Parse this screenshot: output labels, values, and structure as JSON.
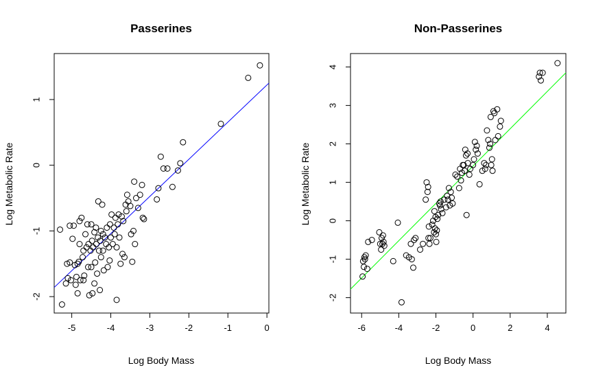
{
  "chart_data": [
    {
      "type": "scatter",
      "title": "Passerines",
      "xlabel": "Log Body Mass",
      "ylabel": "Log Metabolic Rate",
      "xlim": [
        -5.45,
        0.05
      ],
      "ylim": [
        -2.25,
        1.7
      ],
      "xticks": [
        -5,
        -4,
        -3,
        -2,
        -1,
        0
      ],
      "yticks": [
        -2,
        -1,
        0,
        1
      ],
      "grid": false,
      "fit_line": {
        "color": "#0000ff",
        "x": [
          -5.45,
          0.05
        ],
        "y": [
          -1.86,
          1.25
        ]
      },
      "points": [
        [
          -5.25,
          -2.12
        ],
        [
          -5.3,
          -0.98
        ],
        [
          -5.15,
          -1.8
        ],
        [
          -5.1,
          -1.72
        ],
        [
          -5.12,
          -1.5
        ],
        [
          -5.05,
          -1.48
        ],
        [
          -5.05,
          -0.92
        ],
        [
          -5.02,
          -1.75
        ],
        [
          -4.98,
          -1.12
        ],
        [
          -4.95,
          -0.92
        ],
        [
          -4.92,
          -1.52
        ],
        [
          -4.9,
          -1.82
        ],
        [
          -4.88,
          -1.7
        ],
        [
          -4.85,
          -1.5
        ],
        [
          -4.85,
          -1.95
        ],
        [
          -4.82,
          -1.47
        ],
        [
          -4.8,
          -1.2
        ],
        [
          -4.8,
          -0.85
        ],
        [
          -4.78,
          -1.75
        ],
        [
          -4.75,
          -0.8
        ],
        [
          -4.72,
          -1.4
        ],
        [
          -4.7,
          -1.75
        ],
        [
          -4.7,
          -1.3
        ],
        [
          -4.68,
          -1.68
        ],
        [
          -4.65,
          -1.05
        ],
        [
          -4.62,
          -1.25
        ],
        [
          -4.6,
          -0.9
        ],
        [
          -4.58,
          -1.55
        ],
        [
          -4.57,
          -1.2
        ],
        [
          -4.55,
          -1.98
        ],
        [
          -4.52,
          -1.3
        ],
        [
          -4.5,
          -0.9
        ],
        [
          -4.5,
          -1.55
        ],
        [
          -4.48,
          -1.15
        ],
        [
          -4.47,
          -1.95
        ],
        [
          -4.45,
          -1.25
        ],
        [
          -4.42,
          -1.02
        ],
        [
          -4.42,
          -1.8
        ],
        [
          -4.4,
          -1.48
        ],
        [
          -4.38,
          -0.95
        ],
        [
          -4.37,
          -1.2
        ],
        [
          -4.35,
          -1.65
        ],
        [
          -4.33,
          -1.1
        ],
        [
          -4.32,
          -0.55
        ],
        [
          -4.3,
          -1.3
        ],
        [
          -4.28,
          -1.9
        ],
        [
          -4.27,
          -1.15
        ],
        [
          -4.25,
          -1.0
        ],
        [
          -4.25,
          -1.4
        ],
        [
          -4.22,
          -0.6
        ],
        [
          -4.2,
          -1.05
        ],
        [
          -4.2,
          -1.3
        ],
        [
          -4.18,
          -1.6
        ],
        [
          -4.15,
          -1.1
        ],
        [
          -4.12,
          -1.2
        ],
        [
          -4.1,
          -0.95
        ],
        [
          -4.08,
          -1.55
        ],
        [
          -4.05,
          -1.25
        ],
        [
          -4.03,
          -1.45
        ],
        [
          -4.02,
          -0.9
        ],
        [
          -4.0,
          -1.1
        ],
        [
          -3.98,
          -0.75
        ],
        [
          -3.95,
          -1.2
        ],
        [
          -3.92,
          -0.95
        ],
        [
          -3.9,
          -1.05
        ],
        [
          -3.88,
          -0.8
        ],
        [
          -3.85,
          -2.05
        ],
        [
          -3.85,
          -1.25
        ],
        [
          -3.82,
          -0.9
        ],
        [
          -3.8,
          -0.75
        ],
        [
          -3.78,
          -1.1
        ],
        [
          -3.75,
          -1.5
        ],
        [
          -3.72,
          -0.78
        ],
        [
          -3.7,
          -1.35
        ],
        [
          -3.68,
          -0.85
        ],
        [
          -3.65,
          -1.4
        ],
        [
          -3.62,
          -0.6
        ],
        [
          -3.6,
          -0.7
        ],
        [
          -3.58,
          -0.45
        ],
        [
          -3.55,
          -0.55
        ],
        [
          -3.5,
          -0.62
        ],
        [
          -3.48,
          -1.05
        ],
        [
          -3.45,
          -1.47
        ],
        [
          -3.42,
          -1.0
        ],
        [
          -3.4,
          -0.25
        ],
        [
          -3.38,
          -1.2
        ],
        [
          -3.35,
          -0.5
        ],
        [
          -3.3,
          -0.65
        ],
        [
          -3.25,
          -0.45
        ],
        [
          -3.2,
          -0.3
        ],
        [
          -3.18,
          -0.8
        ],
        [
          -3.15,
          -0.82
        ],
        [
          -2.82,
          -0.52
        ],
        [
          -2.78,
          -0.35
        ],
        [
          -2.72,
          0.13
        ],
        [
          -2.65,
          -0.05
        ],
        [
          -2.55,
          -0.05
        ],
        [
          -2.42,
          -0.33
        ],
        [
          -2.28,
          -0.08
        ],
        [
          -2.22,
          0.03
        ],
        [
          -2.15,
          0.35
        ],
        [
          -1.18,
          0.63
        ],
        [
          -0.48,
          1.33
        ],
        [
          -0.18,
          1.52
        ]
      ]
    },
    {
      "type": "scatter",
      "title": "Non-Passerines",
      "xlabel": "Log Body Mass",
      "ylabel": "Log Metabolic Rate",
      "xlim": [
        -6.6,
        5.0
      ],
      "ylim": [
        -2.4,
        4.35
      ],
      "xticks": [
        -6,
        -4,
        -2,
        0,
        2,
        4
      ],
      "yticks": [
        -2,
        -1,
        0,
        1,
        2,
        3,
        4
      ],
      "grid": false,
      "fit_line": {
        "color": "#00ff00",
        "x": [
          -6.6,
          5.0
        ],
        "y": [
          -1.78,
          3.85
        ]
      },
      "points": [
        [
          -5.95,
          -1.45
        ],
        [
          -5.92,
          -1.05
        ],
        [
          -5.88,
          -1.2
        ],
        [
          -5.85,
          -0.95
        ],
        [
          -5.82,
          -1.0
        ],
        [
          -5.78,
          -0.9
        ],
        [
          -5.7,
          -1.25
        ],
        [
          -5.65,
          -0.55
        ],
        [
          -5.45,
          -0.5
        ],
        [
          -5.05,
          -0.3
        ],
        [
          -5.0,
          -0.6
        ],
        [
          -4.95,
          -0.75
        ],
        [
          -4.92,
          -0.45
        ],
        [
          -4.88,
          -0.6
        ],
        [
          -4.85,
          -0.38
        ],
        [
          -4.82,
          -0.55
        ],
        [
          -4.78,
          -0.65
        ],
        [
          -4.3,
          -1.05
        ],
        [
          -4.05,
          -0.05
        ],
        [
          -3.85,
          -2.12
        ],
        [
          -3.6,
          -0.9
        ],
        [
          -3.45,
          -0.95
        ],
        [
          -3.35,
          -0.6
        ],
        [
          -3.3,
          -1.0
        ],
        [
          -3.22,
          -1.22
        ],
        [
          -3.18,
          -0.5
        ],
        [
          -3.1,
          -0.45
        ],
        [
          -2.85,
          -0.75
        ],
        [
          -2.7,
          -0.6
        ],
        [
          -2.55,
          0.55
        ],
        [
          -2.5,
          1.0
        ],
        [
          -2.45,
          0.75
        ],
        [
          -2.42,
          0.88
        ],
        [
          -2.4,
          -0.45
        ],
        [
          -2.38,
          -0.15
        ],
        [
          -2.35,
          -0.6
        ],
        [
          -2.3,
          -0.45
        ],
        [
          -2.2,
          -0.1
        ],
        [
          -2.15,
          0.0
        ],
        [
          -2.1,
          -0.3
        ],
        [
          -2.08,
          0.25
        ],
        [
          -2.05,
          -0.2
        ],
        [
          -2.02,
          0.1
        ],
        [
          -2.0,
          -0.35
        ],
        [
          -1.98,
          -0.55
        ],
        [
          -1.95,
          -0.25
        ],
        [
          -1.92,
          0.05
        ],
        [
          -1.88,
          0.15
        ],
        [
          -1.82,
          0.45
        ],
        [
          -1.78,
          0.4
        ],
        [
          -1.75,
          0.5
        ],
        [
          -1.72,
          0.3
        ],
        [
          -1.65,
          0.2
        ],
        [
          -1.55,
          0.55
        ],
        [
          -1.45,
          0.35
        ],
        [
          -1.4,
          0.65
        ],
        [
          -1.35,
          0.55
        ],
        [
          -1.3,
          0.85
        ],
        [
          -1.25,
          0.4
        ],
        [
          -1.2,
          0.75
        ],
        [
          -1.15,
          0.6
        ],
        [
          -1.1,
          0.45
        ],
        [
          -0.95,
          1.2
        ],
        [
          -0.85,
          1.15
        ],
        [
          -0.75,
          0.85
        ],
        [
          -0.7,
          1.35
        ],
        [
          -0.65,
          1.05
        ],
        [
          -0.6,
          1.25
        ],
        [
          -0.55,
          1.45
        ],
        [
          -0.5,
          1.45
        ],
        [
          -0.45,
          1.3
        ],
        [
          -0.42,
          1.85
        ],
        [
          -0.38,
          1.7
        ],
        [
          -0.35,
          0.15
        ],
        [
          -0.3,
          1.75
        ],
        [
          -0.28,
          1.5
        ],
        [
          -0.2,
          1.2
        ],
        [
          -0.15,
          1.35
        ],
        [
          0.0,
          1.45
        ],
        [
          0.05,
          1.6
        ],
        [
          0.1,
          2.05
        ],
        [
          0.15,
          1.85
        ],
        [
          0.2,
          1.95
        ],
        [
          0.25,
          1.75
        ],
        [
          0.35,
          0.95
        ],
        [
          0.5,
          1.3
        ],
        [
          0.6,
          1.5
        ],
        [
          0.65,
          1.35
        ],
        [
          0.7,
          1.45
        ],
        [
          0.75,
          2.35
        ],
        [
          0.82,
          2.1
        ],
        [
          0.88,
          1.9
        ],
        [
          0.92,
          2.0
        ],
        [
          0.95,
          2.7
        ],
        [
          0.98,
          1.45
        ],
        [
          1.02,
          1.6
        ],
        [
          1.05,
          1.3
        ],
        [
          1.1,
          2.85
        ],
        [
          1.15,
          2.8
        ],
        [
          1.2,
          2.1
        ],
        [
          1.3,
          2.9
        ],
        [
          1.35,
          2.2
        ],
        [
          1.45,
          2.45
        ],
        [
          1.5,
          2.6
        ],
        [
          3.55,
          3.75
        ],
        [
          3.6,
          3.85
        ],
        [
          3.65,
          3.65
        ],
        [
          3.75,
          3.85
        ],
        [
          4.55,
          4.1
        ]
      ]
    }
  ]
}
